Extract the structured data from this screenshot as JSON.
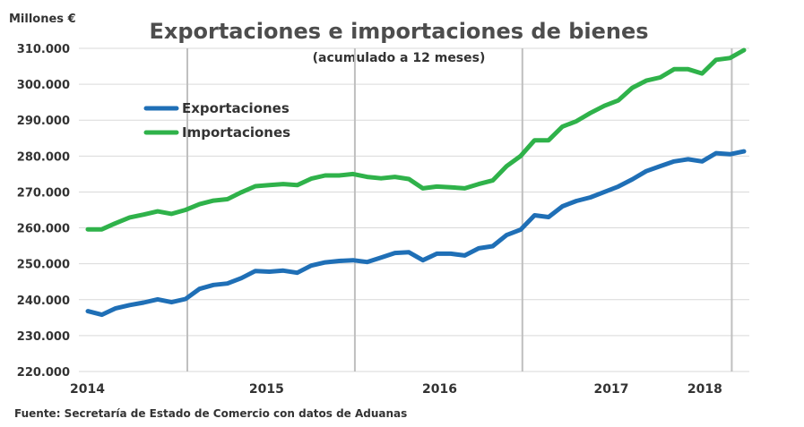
{
  "chart_data": {
    "type": "line",
    "title": "Exportaciones e importaciones de bienes",
    "subtitle": "(acumulado a 12 meses)",
    "ylabel": "Millones €",
    "ylim": [
      220000,
      310000
    ],
    "yticks": [
      220000,
      230000,
      240000,
      250000,
      260000,
      270000,
      280000,
      290000,
      300000,
      310000
    ],
    "ytick_labels": [
      "220.000",
      "230.000",
      "240.000",
      "250.000",
      "260.000",
      "270.000",
      "280.000",
      "290.000",
      "300.000",
      "310.000"
    ],
    "xticks": [
      "2014",
      "2015",
      "2016",
      "2017",
      "2018"
    ],
    "grid": "horizontal",
    "legend_position": "top-left",
    "source": "Fuente: Secretaría de Estado de Comercio con datos de Aduanas",
    "series": [
      {
        "name": "Exportaciones",
        "color": "#1f6fb6",
        "values": [
          236800,
          235800,
          237600,
          238500,
          239200,
          240100,
          239300,
          240200,
          243000,
          244100,
          244500,
          246000,
          248000,
          247800,
          248100,
          247500,
          249500,
          250400,
          250800,
          251000,
          250500,
          251700,
          253000,
          253200,
          251000,
          252800,
          252800,
          252300,
          254300,
          254900,
          258000,
          259500,
          263500,
          263000,
          266000,
          267500,
          268500,
          270000,
          271500,
          273500,
          275800,
          277200,
          278500,
          279100,
          278500,
          280800,
          280500,
          281300
        ]
      },
      {
        "name": "Importaciones",
        "color": "#2fb24a",
        "values": [
          259600,
          259600,
          261300,
          262900,
          263700,
          264600,
          263900,
          265000,
          266600,
          267600,
          268000,
          269900,
          271600,
          271900,
          272200,
          271900,
          273700,
          274600,
          274600,
          275000,
          274200,
          273800,
          274200,
          273600,
          271000,
          271500,
          271300,
          271000,
          272200,
          273200,
          277200,
          280000,
          284400,
          284400,
          288200,
          289700,
          292000,
          294000,
          295500,
          299000,
          301000,
          301900,
          304200,
          304200,
          303000,
          306800,
          307300,
          309500
        ]
      }
    ]
  }
}
